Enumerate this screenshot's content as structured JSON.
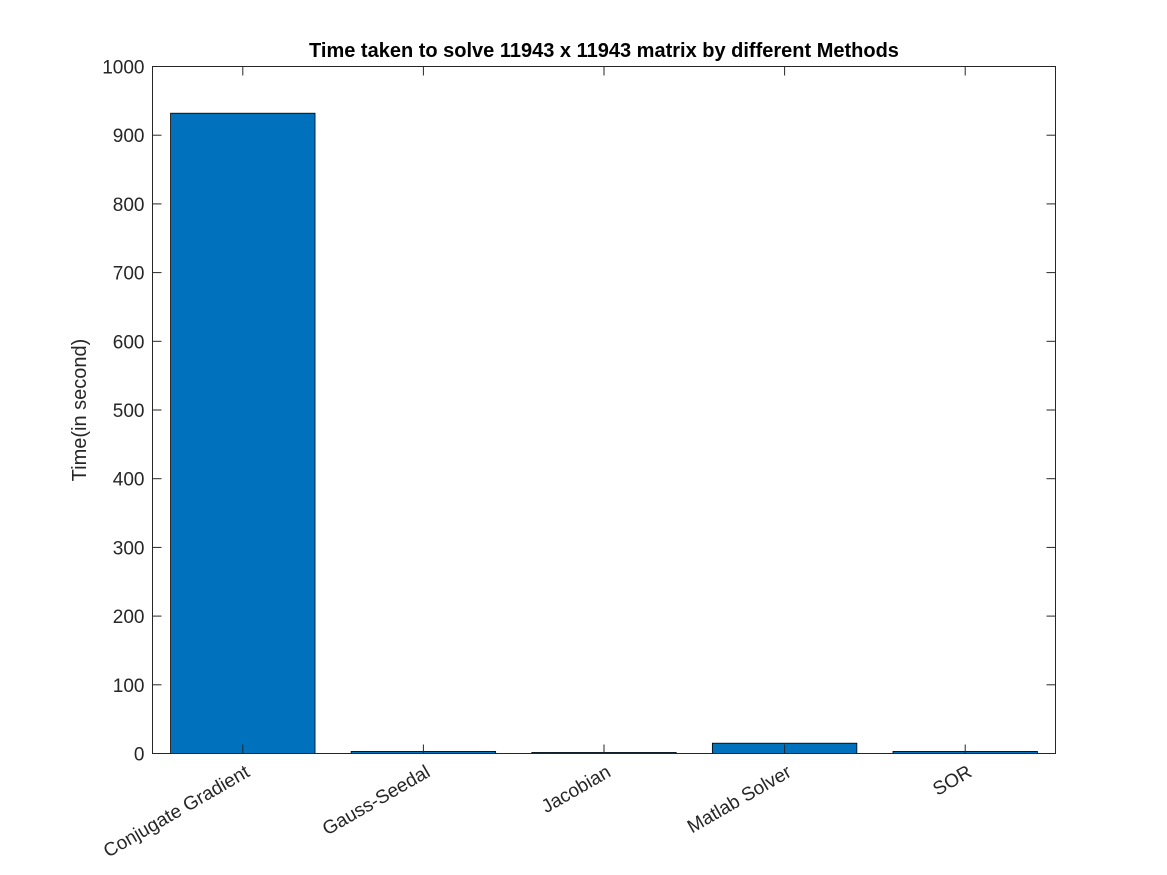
{
  "chart_data": {
    "type": "bar",
    "title": "Time taken to solve 11943 x 11943 matrix by different Methods",
    "xlabel": "",
    "ylabel": "Time(in second)",
    "categories": [
      "Conjugate Gradient",
      "Gauss-Seedal",
      "Jacobian",
      "Matlab Solver",
      "SOR"
    ],
    "values": [
      932,
      3,
      1.5,
      15,
      3
    ],
    "ylim": [
      0,
      1000
    ],
    "yticks": [
      0,
      100,
      200,
      300,
      400,
      500,
      600,
      700,
      800,
      900,
      1000
    ],
    "ytick_labels": [
      "0",
      "100",
      "200",
      "300",
      "400",
      "500",
      "600",
      "700",
      "800",
      "900",
      "1000"
    ],
    "bar_color": "#0072BD",
    "grid": false,
    "legend": "none"
  }
}
